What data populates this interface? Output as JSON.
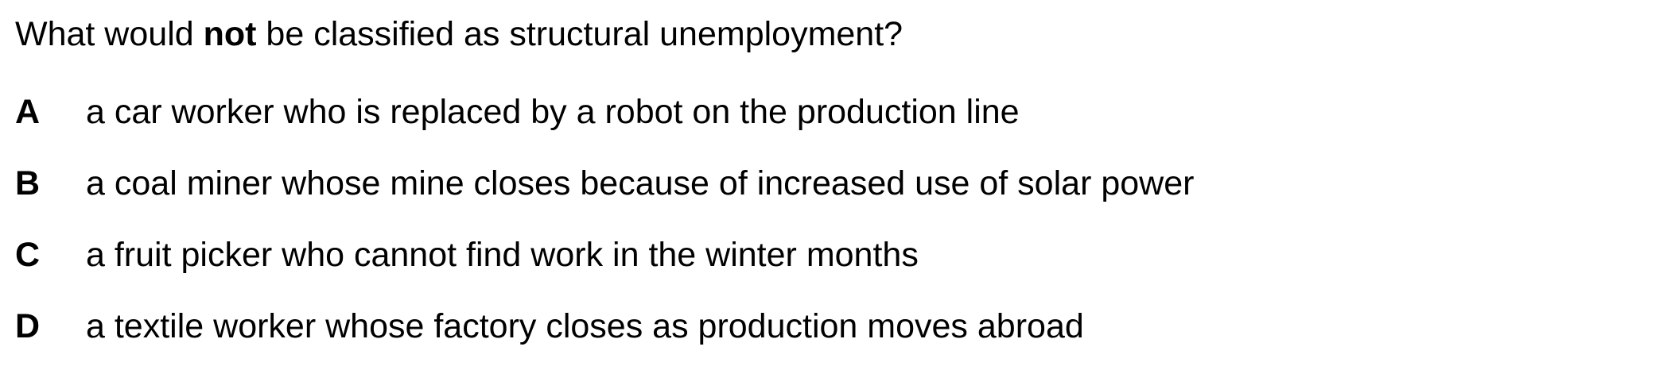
{
  "question": {
    "prefix": "What would ",
    "emphasis": "not",
    "suffix": " be classified as structural unemployment?"
  },
  "options": [
    {
      "letter": "A",
      "text": "a car worker who is replaced by a robot on the production line"
    },
    {
      "letter": "B",
      "text": "a coal miner whose mine closes because of increased use of solar power"
    },
    {
      "letter": "C",
      "text": "a fruit picker who cannot find work in the winter months"
    },
    {
      "letter": "D",
      "text": "a textile worker whose factory closes as production moves abroad"
    }
  ]
}
